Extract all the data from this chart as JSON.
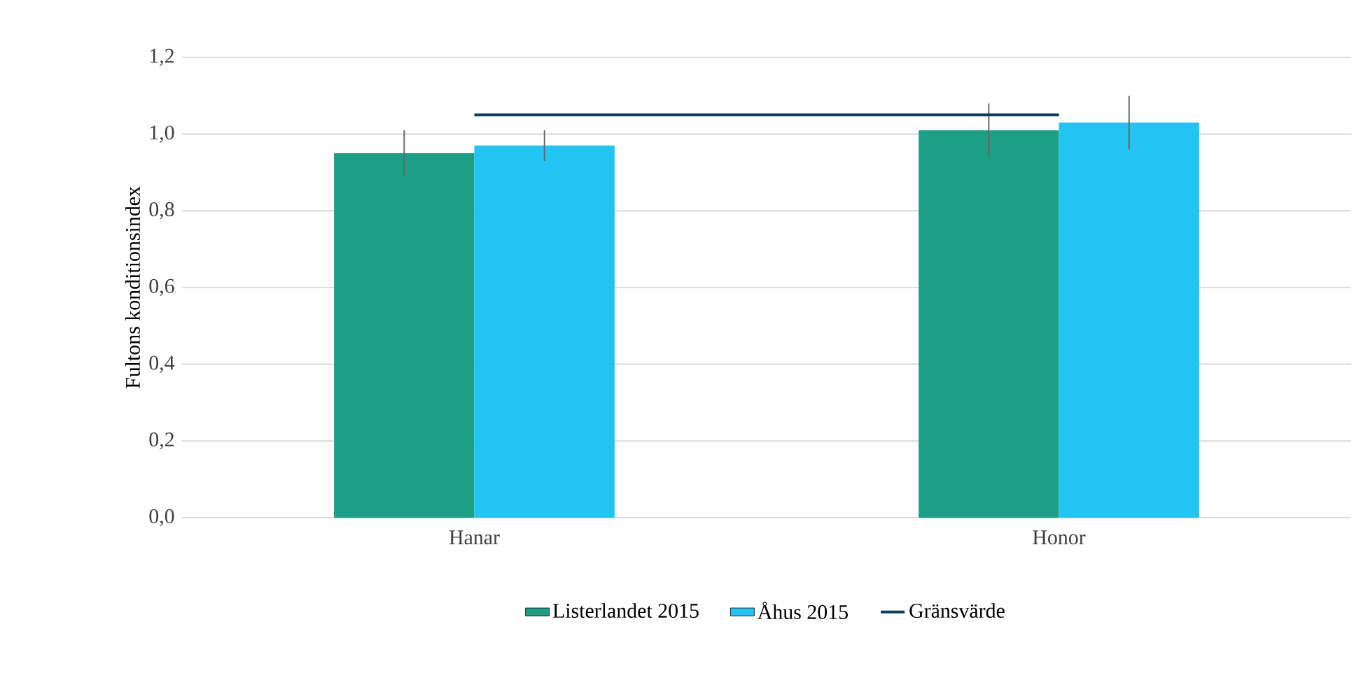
{
  "chart_data": {
    "type": "bar",
    "ylabel": "Fultons konditionsindex",
    "categories": [
      "Hanar",
      "Honor"
    ],
    "series": [
      {
        "name": "Listerlandet 2015",
        "color": "#1ba085",
        "values": [
          0.95,
          1.01
        ],
        "errors": [
          0.06,
          0.07
        ]
      },
      {
        "name": "Åhus 2015",
        "color": "#21c4f3",
        "values": [
          0.97,
          1.03
        ],
        "errors": [
          0.04,
          0.07
        ]
      },
      {
        "name": "Gränsvärde",
        "type": "line",
        "color": "#0b3c5d",
        "values": [
          1.05,
          1.05
        ]
      }
    ],
    "ylim": [
      0,
      1.2
    ],
    "yticks": [
      {
        "value": 0,
        "label": "0,0"
      },
      {
        "value": 0.2,
        "label": "0,2"
      },
      {
        "value": 0.4,
        "label": "0,4"
      },
      {
        "value": 0.6,
        "label": "0,6"
      },
      {
        "value": 0.8,
        "label": "0,8"
      },
      {
        "value": 1.0,
        "label": "1,0"
      },
      {
        "value": 1.2,
        "label": "1,2"
      }
    ],
    "grid": "y",
    "legend": "bottom"
  }
}
